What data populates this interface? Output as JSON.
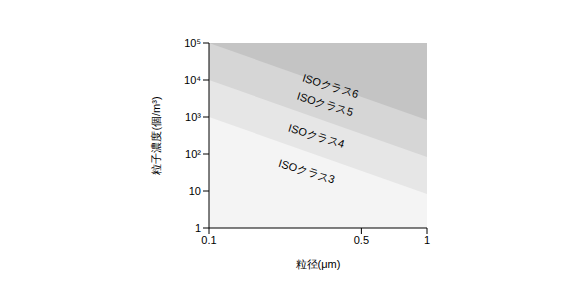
{
  "chart_data": {
    "type": "area",
    "x_label": "粒径(μm)",
    "y_label": "粒子濃度(個/m³)",
    "x": [
      0.1,
      1
    ],
    "series": [
      {
        "name": "ISOクラス6",
        "color": "#c4c4c4",
        "values": [
          100000,
          100000
        ]
      },
      {
        "name": "ISOクラス5",
        "color": "#d6d6d6",
        "values": [
          100000,
          832
        ]
      },
      {
        "name": "ISOクラス4",
        "color": "#e6e6e6",
        "values": [
          10000,
          83
        ]
      },
      {
        "name": "ISOクラス3",
        "color": "#f4f4f4",
        "values": [
          1000,
          8.3
        ]
      }
    ],
    "xlim": [
      0.1,
      1
    ],
    "ylim": [
      1,
      100000
    ],
    "xticks": [
      0.1,
      0.5,
      1
    ],
    "yticks": [
      1,
      10,
      {
        "value": 100,
        "label": "10²"
      },
      {
        "value": 1000,
        "label": "10³"
      },
      {
        "value": 10000,
        "label": "10⁴"
      },
      {
        "value": 100000,
        "label": "10⁵"
      }
    ],
    "log": true,
    "grid": false,
    "annotations": [
      {
        "text": "ISOクラス6",
        "x": 0.36,
        "y": 6500
      },
      {
        "text": "ISOクラス5",
        "x": 0.34,
        "y": 2100
      },
      {
        "text": "ISOクラス4",
        "x": 0.31,
        "y": 290
      },
      {
        "text": "ISOクラス3",
        "x": 0.28,
        "y": 32
      }
    ]
  }
}
